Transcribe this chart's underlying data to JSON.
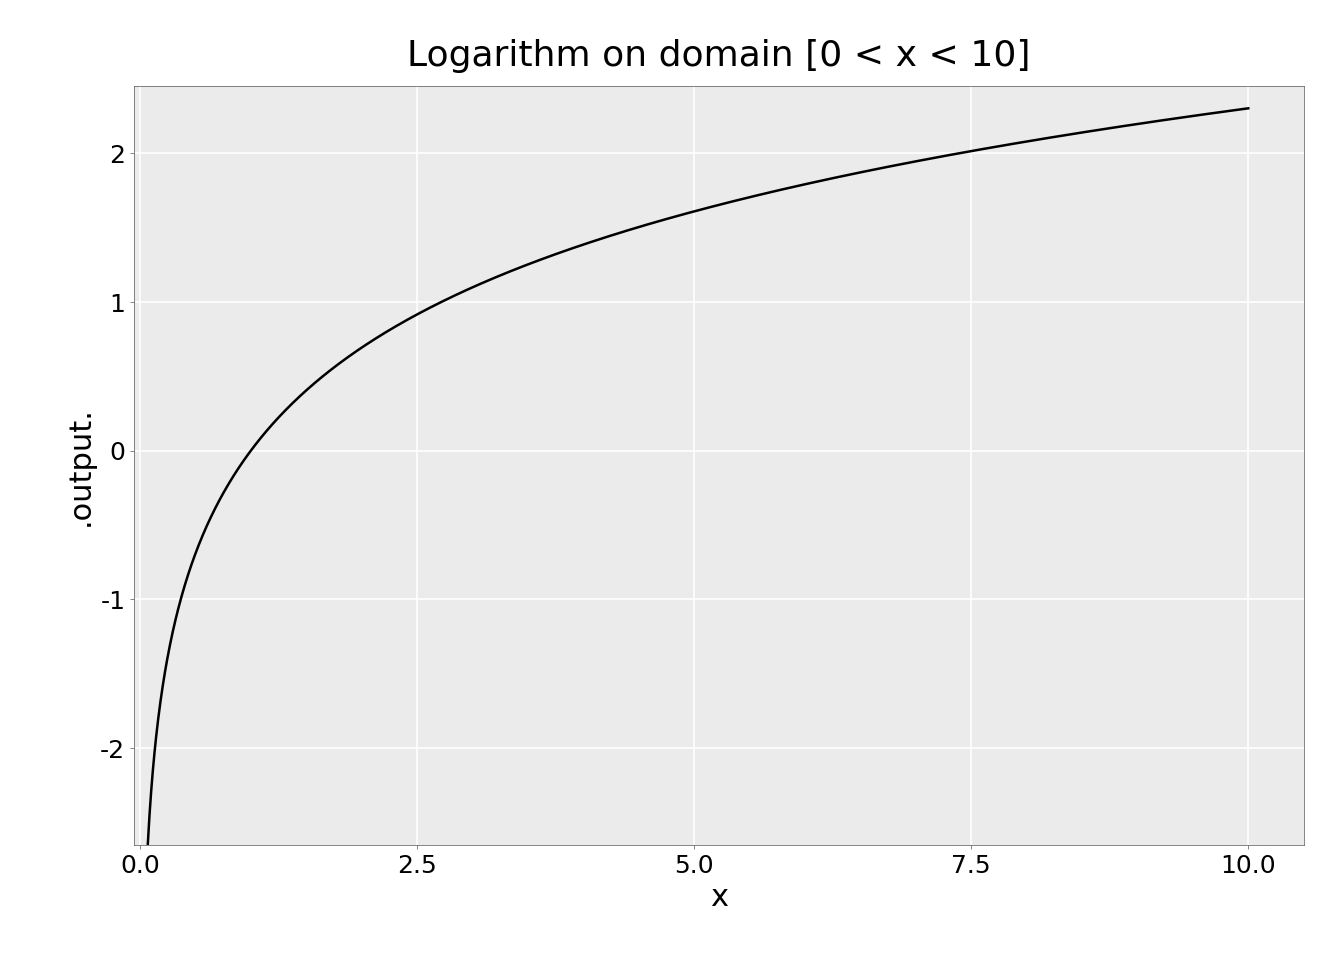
{
  "title": "Logarithm on domain [0 < x < 10]",
  "xlabel": "x",
  "ylabel": ".output.",
  "x_start": 0.001,
  "x_end": 10.0,
  "xlim": [
    -0.05,
    10.5
  ],
  "ylim": [
    -2.65,
    2.45
  ],
  "xticks": [
    0.0,
    2.5,
    5.0,
    7.5,
    10.0
  ],
  "yticks": [
    -2,
    -1,
    0,
    1,
    2
  ],
  "line_color": "#000000",
  "background_color": "#ffffff",
  "panel_background": "#ebebeb",
  "grid_color": "#ffffff",
  "title_fontsize": 26,
  "label_fontsize": 22,
  "tick_fontsize": 18,
  "line_width": 1.8
}
